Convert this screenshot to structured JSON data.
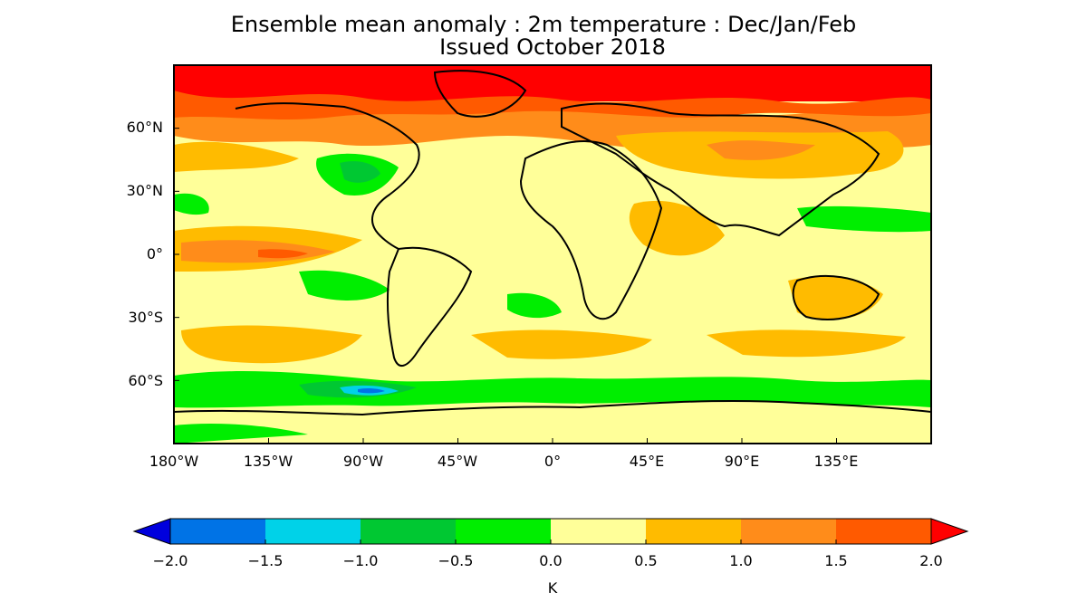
{
  "title_line1": "Ensemble mean anomaly : 2m temperature : Dec/Jan/Feb",
  "title_line2": "Issued October 2018",
  "map": {
    "projection": "equirectangular",
    "lon_range": [
      -180,
      180
    ],
    "lat_range": [
      -90,
      90
    ],
    "lat_ticks": [
      "60°N",
      "30°N",
      "0°",
      "30°S",
      "60°S"
    ],
    "lon_ticks": [
      "180°W",
      "135°W",
      "90°W",
      "45°W",
      "0°",
      "45°E",
      "90°E",
      "135°E"
    ],
    "background_color": "#ffff99"
  },
  "colorbar": {
    "unit": "K",
    "tick_labels": [
      "−2.0",
      "−1.5",
      "−1.0",
      "−0.5",
      "0.0",
      "0.5",
      "1.0",
      "1.5",
      "2.0"
    ],
    "bins": [
      {
        "range": [
          -2.0,
          -1.5
        ],
        "color": "#0073e6"
      },
      {
        "range": [
          -1.5,
          -1.0
        ],
        "color": "#00d2e8"
      },
      {
        "range": [
          -1.0,
          -0.5
        ],
        "color": "#00c832"
      },
      {
        "range": [
          -0.5,
          0.0
        ],
        "color": "#00ee00"
      },
      {
        "range": [
          0.0,
          0.5
        ],
        "color": "#ffff99"
      },
      {
        "range": [
          0.5,
          1.0
        ],
        "color": "#ffbb00"
      },
      {
        "range": [
          1.0,
          1.5
        ],
        "color": "#ff8c1a"
      },
      {
        "range": [
          1.5,
          2.0
        ],
        "color": "#ff5a00"
      }
    ],
    "under_color": "#0000dd",
    "over_color": "#ff0000"
  }
}
